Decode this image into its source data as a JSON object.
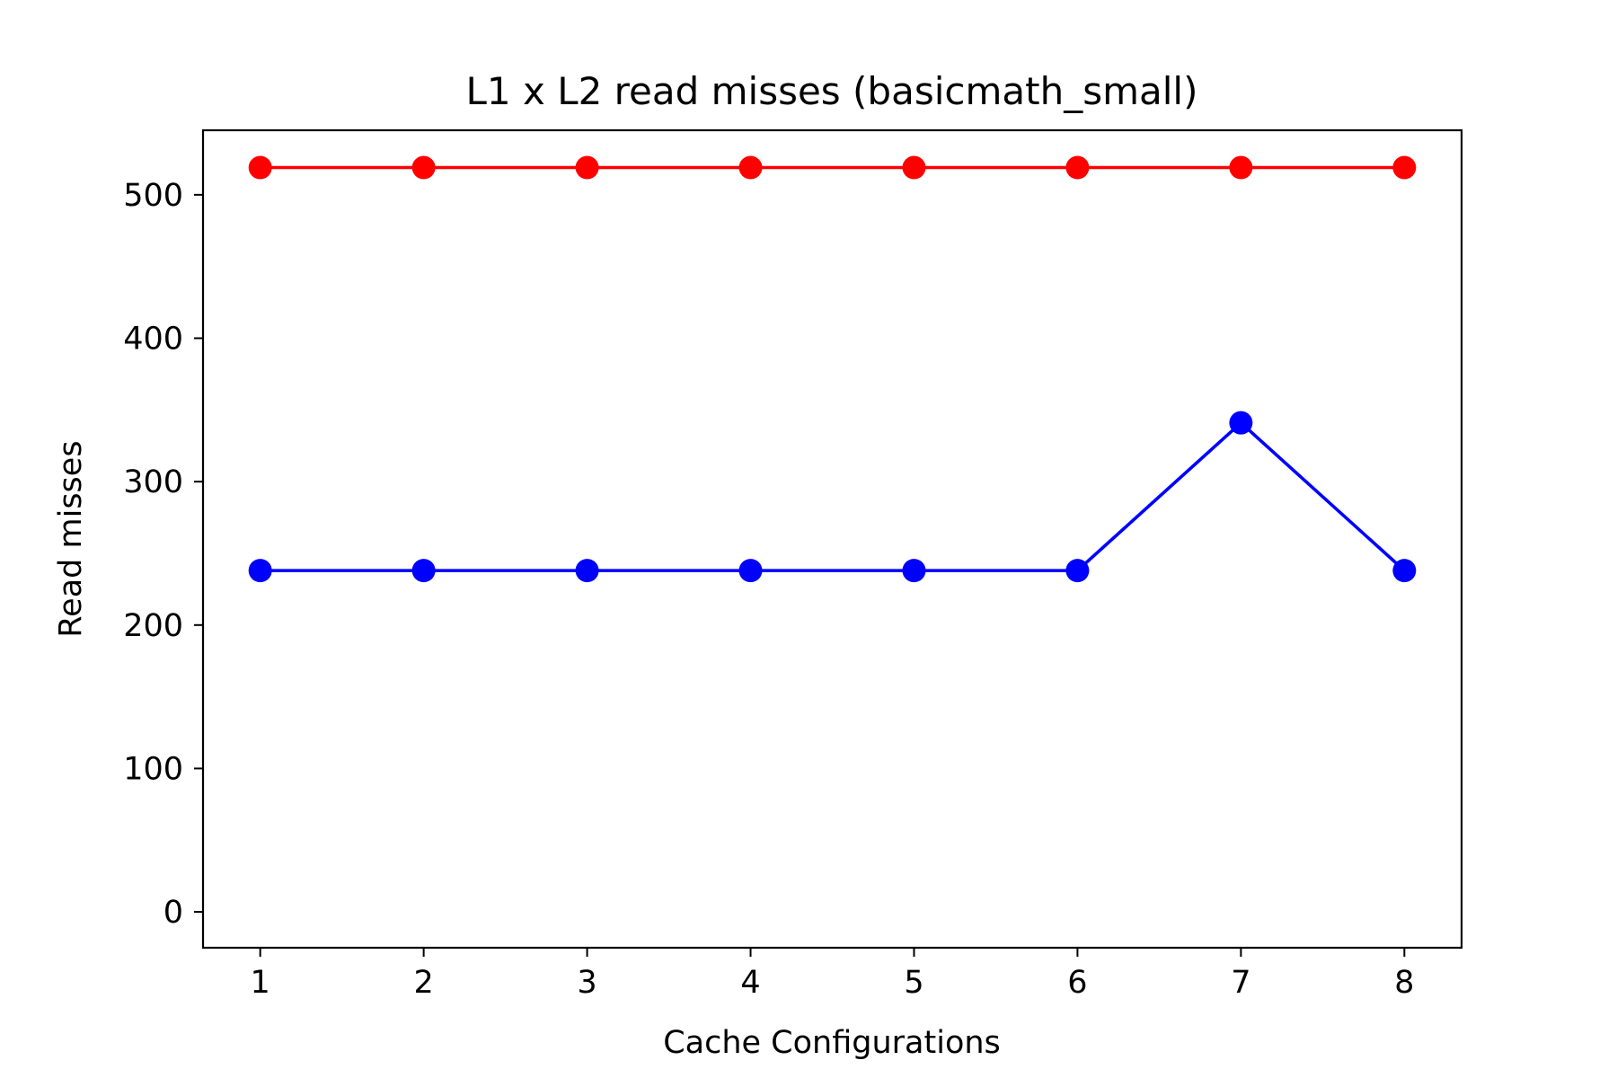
{
  "chart_data": {
    "type": "line",
    "title": "L1 x L2 read misses (basicmath_small)",
    "xlabel": "Cache Configurations",
    "ylabel": "Read misses",
    "x": [
      1,
      2,
      3,
      4,
      5,
      6,
      7,
      8
    ],
    "xlim": [
      0.65,
      8.35
    ],
    "ylim": [
      -25,
      545
    ],
    "xticks": [
      "1",
      "2",
      "3",
      "4",
      "5",
      "6",
      "7",
      "8"
    ],
    "yticks": [
      "0",
      "100",
      "200",
      "300",
      "400",
      "500"
    ],
    "grid": false,
    "series": [
      {
        "color": "#ff0000",
        "marker": "circle",
        "values": [
          519,
          519,
          519,
          519,
          519,
          519,
          519,
          519
        ]
      },
      {
        "color": "#0000ff",
        "marker": "circle",
        "values": [
          238,
          238,
          238,
          238,
          238,
          238,
          341,
          238
        ]
      }
    ]
  }
}
